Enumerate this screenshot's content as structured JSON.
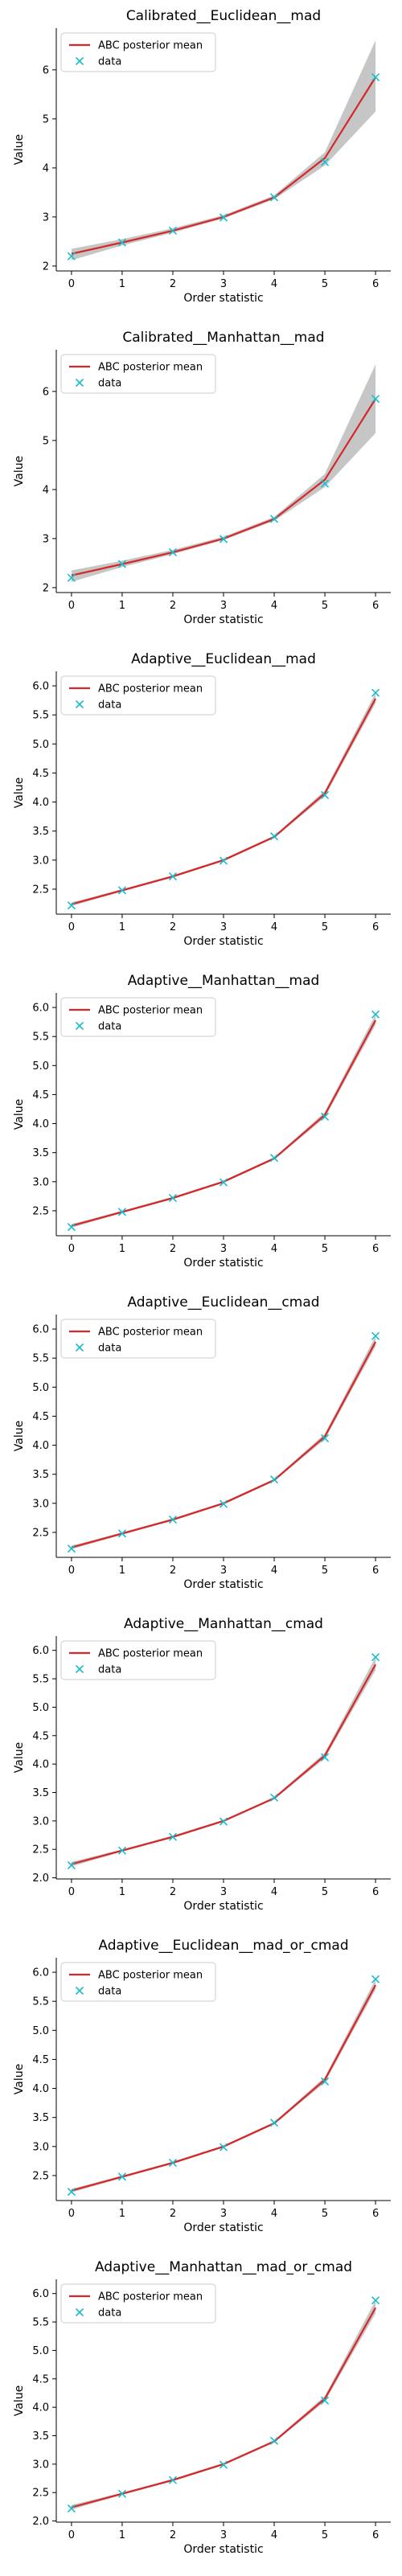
{
  "chart_data": [
    {
      "type": "line",
      "title": "Calibrated__Euclidean__mad",
      "xlabel": "Order statistic",
      "ylabel": "Value",
      "x": [
        0,
        1,
        2,
        3,
        4,
        5,
        6
      ],
      "xticks": [
        "0",
        "1",
        "2",
        "3",
        "4",
        "5",
        "6"
      ],
      "yticks": [
        "2",
        "3",
        "4",
        "5",
        "6"
      ],
      "ylim": [
        1.9,
        6.85
      ],
      "legend": "top-left",
      "grid": false,
      "series": [
        {
          "name": "ABC posterior mean",
          "values": [
            2.25,
            2.48,
            2.72,
            3.0,
            3.4,
            4.2,
            5.85
          ],
          "color": "#d62728"
        },
        {
          "name": "data",
          "values": [
            2.2,
            2.48,
            2.72,
            2.99,
            3.4,
            4.12,
            5.85
          ],
          "color": "#17becf"
        }
      ],
      "band": {
        "lower": [
          2.12,
          2.42,
          2.68,
          2.97,
          3.36,
          4.05,
          5.15
        ],
        "upper": [
          2.35,
          2.55,
          2.77,
          3.04,
          3.44,
          4.32,
          6.6
        ]
      }
    },
    {
      "type": "line",
      "title": "Calibrated__Manhattan__mad",
      "xlabel": "Order statistic",
      "ylabel": "Value",
      "x": [
        0,
        1,
        2,
        3,
        4,
        5,
        6
      ],
      "xticks": [
        "0",
        "1",
        "2",
        "3",
        "4",
        "5",
        "6"
      ],
      "yticks": [
        "2",
        "3",
        "4",
        "5",
        "6"
      ],
      "ylim": [
        1.9,
        6.85
      ],
      "legend": "top-left",
      "grid": false,
      "series": [
        {
          "name": "ABC posterior mean",
          "values": [
            2.25,
            2.48,
            2.72,
            3.0,
            3.4,
            4.2,
            5.85
          ],
          "color": "#d62728"
        },
        {
          "name": "data",
          "values": [
            2.2,
            2.48,
            2.72,
            2.99,
            3.4,
            4.12,
            5.85
          ],
          "color": "#17becf"
        }
      ],
      "band": {
        "lower": [
          2.12,
          2.42,
          2.68,
          2.97,
          3.36,
          4.05,
          5.15
        ],
        "upper": [
          2.35,
          2.55,
          2.77,
          3.04,
          3.44,
          4.32,
          6.55
        ]
      }
    },
    {
      "type": "line",
      "title": "Adaptive__Euclidean__mad",
      "xlabel": "Order statistic",
      "ylabel": "Value",
      "x": [
        0,
        1,
        2,
        3,
        4,
        5,
        6
      ],
      "xticks": [
        "0",
        "1",
        "2",
        "3",
        "4",
        "5",
        "6"
      ],
      "yticks": [
        "2.5",
        "3.0",
        "3.5",
        "4.0",
        "4.5",
        "5.0",
        "5.5",
        "6.0"
      ],
      "ylim": [
        2.07,
        6.25
      ],
      "legend": "top-left",
      "grid": false,
      "series": [
        {
          "name": "ABC posterior mean",
          "values": [
            2.24,
            2.48,
            2.72,
            3.0,
            3.4,
            4.15,
            5.78
          ],
          "color": "#d62728"
        },
        {
          "name": "data",
          "values": [
            2.22,
            2.48,
            2.72,
            2.99,
            3.41,
            4.12,
            5.88
          ],
          "color": "#17becf"
        }
      ],
      "band": {
        "lower": [
          2.21,
          2.46,
          2.7,
          2.98,
          3.38,
          4.1,
          5.7
        ],
        "upper": [
          2.27,
          2.5,
          2.74,
          3.02,
          3.42,
          4.2,
          5.88
        ]
      }
    },
    {
      "type": "line",
      "title": "Adaptive__Manhattan__mad",
      "xlabel": "Order statistic",
      "ylabel": "Value",
      "x": [
        0,
        1,
        2,
        3,
        4,
        5,
        6
      ],
      "xticks": [
        "0",
        "1",
        "2",
        "3",
        "4",
        "5",
        "6"
      ],
      "yticks": [
        "2.5",
        "3.0",
        "3.5",
        "4.0",
        "4.5",
        "5.0",
        "5.5",
        "6.0"
      ],
      "ylim": [
        2.07,
        6.25
      ],
      "legend": "top-left",
      "grid": false,
      "series": [
        {
          "name": "ABC posterior mean",
          "values": [
            2.24,
            2.48,
            2.72,
            3.0,
            3.4,
            4.15,
            5.78
          ],
          "color": "#d62728"
        },
        {
          "name": "data",
          "values": [
            2.22,
            2.48,
            2.72,
            2.99,
            3.41,
            4.12,
            5.88
          ],
          "color": "#17becf"
        }
      ],
      "band": {
        "lower": [
          2.21,
          2.46,
          2.7,
          2.98,
          3.38,
          4.1,
          5.7
        ],
        "upper": [
          2.27,
          2.5,
          2.74,
          3.02,
          3.42,
          4.2,
          5.88
        ]
      }
    },
    {
      "type": "line",
      "title": "Adaptive__Euclidean__cmad",
      "xlabel": "Order statistic",
      "ylabel": "Value",
      "x": [
        0,
        1,
        2,
        3,
        4,
        5,
        6
      ],
      "xticks": [
        "0",
        "1",
        "2",
        "3",
        "4",
        "5",
        "6"
      ],
      "yticks": [
        "2.5",
        "3.0",
        "3.5",
        "4.0",
        "4.5",
        "5.0",
        "5.5",
        "6.0"
      ],
      "ylim": [
        2.07,
        6.25
      ],
      "legend": "top-left",
      "grid": false,
      "series": [
        {
          "name": "ABC posterior mean",
          "values": [
            2.24,
            2.48,
            2.72,
            3.0,
            3.4,
            4.15,
            5.78
          ],
          "color": "#d62728"
        },
        {
          "name": "data",
          "values": [
            2.22,
            2.48,
            2.72,
            2.99,
            3.41,
            4.12,
            5.88
          ],
          "color": "#17becf"
        }
      ],
      "band": {
        "lower": [
          2.21,
          2.46,
          2.7,
          2.98,
          3.38,
          4.1,
          5.7
        ],
        "upper": [
          2.27,
          2.5,
          2.74,
          3.02,
          3.42,
          4.2,
          5.88
        ]
      }
    },
    {
      "type": "line",
      "title": "Adaptive__Manhattan__cmad",
      "xlabel": "Order statistic",
      "ylabel": "Value",
      "x": [
        0,
        1,
        2,
        3,
        4,
        5,
        6
      ],
      "xticks": [
        "0",
        "1",
        "2",
        "3",
        "4",
        "5",
        "6"
      ],
      "yticks": [
        "2.0",
        "2.5",
        "3.0",
        "3.5",
        "4.0",
        "4.5",
        "5.0",
        "5.5",
        "6.0"
      ],
      "ylim": [
        1.98,
        6.25
      ],
      "legend": "top-left",
      "grid": false,
      "series": [
        {
          "name": "ABC posterior mean",
          "values": [
            2.24,
            2.48,
            2.72,
            3.0,
            3.4,
            4.15,
            5.75
          ],
          "color": "#d62728"
        },
        {
          "name": "data",
          "values": [
            2.22,
            2.48,
            2.72,
            2.99,
            3.41,
            4.12,
            5.88
          ],
          "color": "#17becf"
        }
      ],
      "band": {
        "lower": [
          2.2,
          2.46,
          2.7,
          2.98,
          3.38,
          4.1,
          5.65
        ],
        "upper": [
          2.28,
          2.5,
          2.74,
          3.02,
          3.42,
          4.2,
          5.88
        ]
      }
    },
    {
      "type": "line",
      "title": "Adaptive__Euclidean__mad_or_cmad",
      "xlabel": "Order statistic",
      "ylabel": "Value",
      "x": [
        0,
        1,
        2,
        3,
        4,
        5,
        6
      ],
      "xticks": [
        "0",
        "1",
        "2",
        "3",
        "4",
        "5",
        "6"
      ],
      "yticks": [
        "2.5",
        "3.0",
        "3.5",
        "4.0",
        "4.5",
        "5.0",
        "5.5",
        "6.0"
      ],
      "ylim": [
        2.07,
        6.25
      ],
      "legend": "top-left",
      "grid": false,
      "series": [
        {
          "name": "ABC posterior mean",
          "values": [
            2.24,
            2.48,
            2.72,
            3.0,
            3.4,
            4.15,
            5.78
          ],
          "color": "#d62728"
        },
        {
          "name": "data",
          "values": [
            2.22,
            2.48,
            2.72,
            2.99,
            3.41,
            4.12,
            5.88
          ],
          "color": "#17becf"
        }
      ],
      "band": {
        "lower": [
          2.21,
          2.46,
          2.7,
          2.98,
          3.38,
          4.1,
          5.7
        ],
        "upper": [
          2.27,
          2.5,
          2.74,
          3.02,
          3.42,
          4.2,
          5.88
        ]
      }
    },
    {
      "type": "line",
      "title": "Adaptive__Manhattan__mad_or_cmad",
      "xlabel": "Order statistic",
      "ylabel": "Value",
      "x": [
        0,
        1,
        2,
        3,
        4,
        5,
        6
      ],
      "xticks": [
        "0",
        "1",
        "2",
        "3",
        "4",
        "5",
        "6"
      ],
      "yticks": [
        "2.0",
        "2.5",
        "3.0",
        "3.5",
        "4.0",
        "4.5",
        "5.0",
        "5.5",
        "6.0"
      ],
      "ylim": [
        1.98,
        6.25
      ],
      "legend": "top-left",
      "grid": false,
      "series": [
        {
          "name": "ABC posterior mean",
          "values": [
            2.24,
            2.48,
            2.72,
            3.0,
            3.4,
            4.15,
            5.75
          ],
          "color": "#d62728"
        },
        {
          "name": "data",
          "values": [
            2.22,
            2.48,
            2.72,
            2.99,
            3.41,
            4.12,
            5.88
          ],
          "color": "#17becf"
        }
      ],
      "band": {
        "lower": [
          2.2,
          2.46,
          2.7,
          2.98,
          3.38,
          4.1,
          5.65
        ],
        "upper": [
          2.28,
          2.5,
          2.74,
          3.02,
          3.42,
          4.2,
          5.88
        ]
      }
    }
  ]
}
